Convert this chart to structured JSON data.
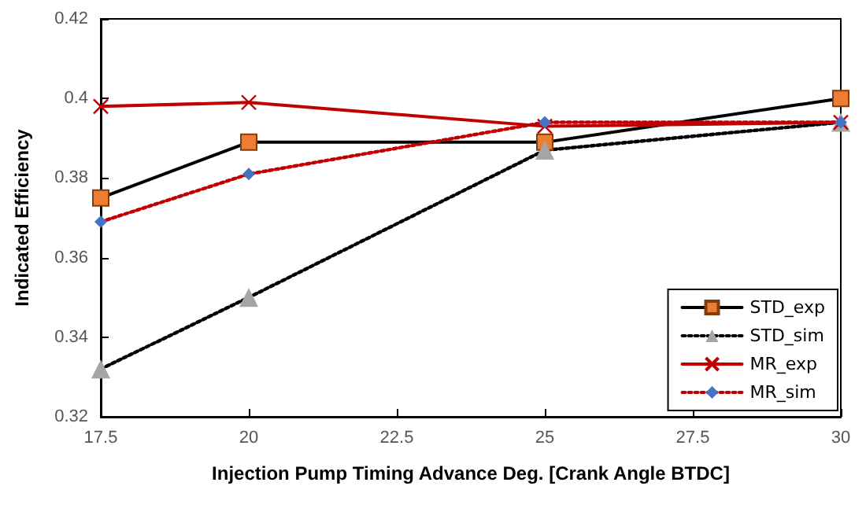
{
  "chart_data": {
    "type": "line",
    "xlabel": "Injection Pump Timing Advance Deg. [Crank Angle BTDC]",
    "ylabel": "Indicated Efficiency",
    "x": [
      17.5,
      20,
      25,
      30
    ],
    "xlim": [
      17.5,
      30
    ],
    "xticks": [
      17.5,
      20,
      22.5,
      25,
      27.5,
      30
    ],
    "ylim": [
      0.32,
      0.42
    ],
    "yticks": [
      0.32,
      0.34,
      0.36,
      0.38,
      0.4,
      0.42
    ],
    "grid": false,
    "legend": "bottom right",
    "series": [
      {
        "name": "STD_exp",
        "color": "#000000",
        "marker": "square",
        "line_style": "solid",
        "values": [
          0.375,
          0.389,
          0.389,
          0.4
        ]
      },
      {
        "name": "STD_sim",
        "color": "#000000",
        "marker": "triangle",
        "line_style": "dotted",
        "values": [
          0.332,
          0.35,
          0.387,
          0.394
        ]
      },
      {
        "name": "MR_exp",
        "color": "#c00000",
        "marker": "cross",
        "line_style": "solid",
        "values": [
          0.398,
          0.399,
          0.393,
          0.394
        ]
      },
      {
        "name": "MR_sim",
        "color": "#c00000",
        "marker": "diamond",
        "line_style": "dotted",
        "values": [
          0.369,
          0.381,
          0.394,
          0.394
        ]
      }
    ]
  }
}
